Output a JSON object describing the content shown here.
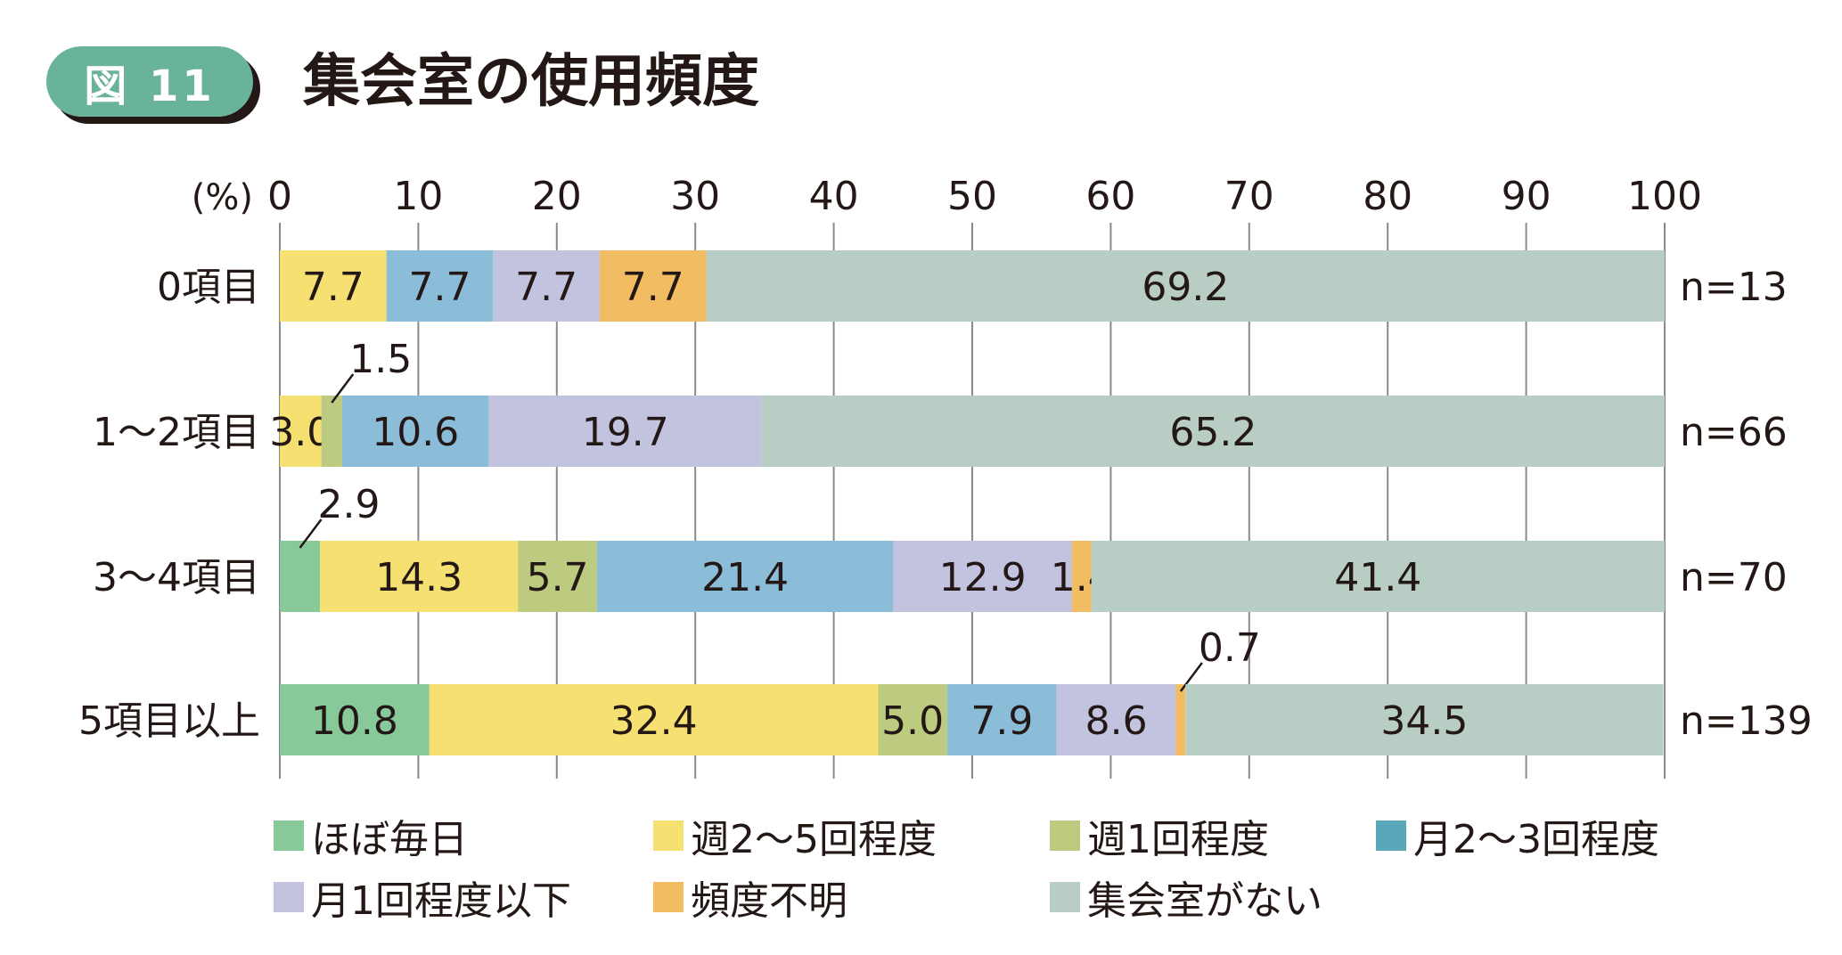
{
  "figure": {
    "badge": "図 11",
    "title": "集会室の使用頻度"
  },
  "chart_data": {
    "type": "bar",
    "orientation": "horizontal-stacked",
    "title": "集会室の使用頻度",
    "xlabel": "(%)",
    "xlim": [
      0,
      100
    ],
    "xticks": [
      "0",
      "10",
      "20",
      "30",
      "40",
      "50",
      "60",
      "70",
      "80",
      "90",
      "100"
    ],
    "grid": true,
    "legend_position": "bottom",
    "categories": [
      "0項目",
      "1～2項目",
      "3～4項目",
      "5項目以上"
    ],
    "n_labels": [
      "n=13",
      "n=66",
      "n=70",
      "n=139"
    ],
    "series": [
      {
        "name": "ほぼ毎日",
        "color": "#88c99a",
        "values": [
          0,
          0,
          2.9,
          10.8
        ]
      },
      {
        "name": "週2～5回程度",
        "color": "#f6e072",
        "values": [
          7.7,
          3.0,
          14.3,
          32.4
        ]
      },
      {
        "name": "週1回程度",
        "color": "#bccb7f",
        "values": [
          0,
          1.5,
          5.7,
          5.0
        ]
      },
      {
        "name": "月2～3回程度",
        "color": "#8bbdd9",
        "legend_color": "#5aa7b9",
        "values": [
          7.7,
          10.6,
          21.4,
          7.9
        ]
      },
      {
        "name": "月1回程度以下",
        "color": "#c1c3df",
        "values": [
          7.7,
          19.7,
          12.9,
          8.6
        ]
      },
      {
        "name": "頻度不明",
        "color": "#f2bd62",
        "values": [
          7.7,
          0,
          1.4,
          0.7
        ]
      },
      {
        "name": "集会室がない",
        "color": "#b8cdc3",
        "values": [
          69.2,
          65.2,
          41.4,
          34.5
        ]
      }
    ],
    "callouts": [
      {
        "category": "1～2項目",
        "series": "週1回程度",
        "label": "1.5"
      },
      {
        "category": "3～4項目",
        "series": "ほぼ毎日",
        "label": "2.9"
      },
      {
        "category": "5項目以上",
        "series": "頻度不明",
        "label": "0.7"
      }
    ]
  }
}
